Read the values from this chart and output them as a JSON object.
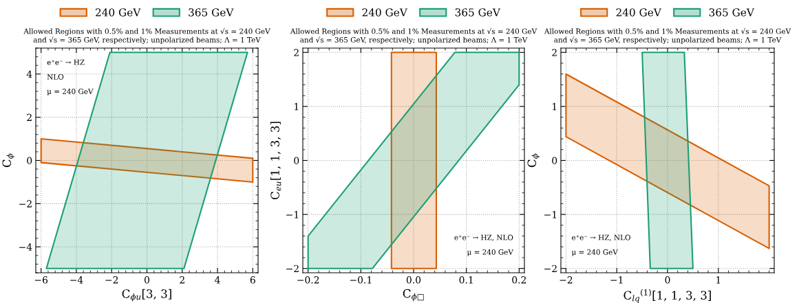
{
  "chart_data": [
    {
      "type": "area",
      "title": "Allowed Regions with 0.5% and 1% Measurements at √s = 240 GeV\nand √s = 365 GeV, respectively; unpolarized beams; Λ = 1 TeV",
      "xlabel": "C$_{ϕu}$[3, 3]",
      "ylabel": "C$_{ϕ}$",
      "xlim": [
        -6.3,
        6.3
      ],
      "ylim": [
        -5.2,
        5.2
      ],
      "xticks": [
        {
          "value": -6,
          "label": "−6"
        },
        {
          "value": -4,
          "label": "−4"
        },
        {
          "value": -2,
          "label": "−2"
        },
        0,
        2,
        4,
        6
      ],
      "yticks": [
        {
          "value": -4,
          "label": "−4"
        },
        {
          "value": -2,
          "label": "−2"
        },
        0,
        2,
        4
      ],
      "grid": true,
      "legend": "top",
      "annotations": [
        "e⁺e⁻ → HZ",
        "NLO",
        "μ = 240 GeV"
      ],
      "series": [
        {
          "name": "240 GeV",
          "color": "#d95f02",
          "x": [
            -6,
            6,
            6,
            -6
          ],
          "values": [
            1.0,
            0.1,
            -1.0,
            -0.1
          ]
        },
        {
          "name": "365 GeV",
          "color": "#1b9e77",
          "x": [
            -5.7,
            2.1,
            5.7,
            -2.1
          ],
          "values": [
            -5,
            -5,
            5,
            5
          ]
        }
      ]
    },
    {
      "type": "area",
      "title": "Allowed Regions with 0.5% and 1% Measurements at √s = 240 GeV\nand √s = 365 GeV, respectively; unpolarized beams; Λ = 1 TeV",
      "xlabel": "C$_{ϕ□}$",
      "ylabel": "C$_{eu}$[1, 1, 3, 3]",
      "xlim": [
        -0.21,
        0.21
      ],
      "ylim": [
        -2.08,
        2.08
      ],
      "xticks": [
        {
          "value": -0.2,
          "label": "−0.2"
        },
        {
          "value": -0.1,
          "label": "−0.1"
        },
        {
          "value": 0,
          "label": "0.0"
        },
        0.1,
        0.2
      ],
      "yticks": [
        {
          "value": -2,
          "label": "−2"
        },
        {
          "value": -1,
          "label": "−1"
        },
        0,
        1,
        2
      ],
      "grid": true,
      "legend": "top",
      "annotations": [
        "e⁺e⁻ → HZ, NLO",
        "μ = 240 GeV"
      ],
      "series": [
        {
          "name": "240 GeV",
          "color": "#d95f02",
          "x": [
            -0.042,
            0.043,
            0.043,
            -0.042
          ],
          "values": [
            -2,
            -2,
            2,
            2
          ]
        },
        {
          "name": "365 GeV",
          "color": "#1b9e77",
          "x": [
            -0.2,
            -0.078,
            0.2,
            0.2,
            0.078,
            -0.2
          ],
          "values": [
            -2,
            -2,
            1.4,
            2,
            2,
            -1.4
          ]
        }
      ]
    },
    {
      "type": "area",
      "title": "Allowed Regions with 0.5% and 1% Measurements at √s = 240 GeV\nand √s = 365 GeV, respectively; unpolarized beams; Λ = 1 TeV",
      "xlabel": "C$_{lq}$$^{(1)}$[1, 1, 3, 3]",
      "ylabel": "C$_{ϕ}$",
      "xlim": [
        -2.1,
        2.1
      ],
      "ylim": [
        -2.08,
        2.08
      ],
      "xticks": [
        {
          "value": -2,
          "label": "−2"
        },
        {
          "value": -1,
          "label": "−1"
        },
        0,
        1
      ],
      "yticks": [
        {
          "value": -2,
          "label": "−2"
        },
        {
          "value": -1,
          "label": "−1"
        },
        0,
        1,
        2
      ],
      "grid": true,
      "legend": "top",
      "annotations": [
        "e⁺e⁻ → HZ, NLO",
        "μ = 240 GeV"
      ],
      "series": [
        {
          "name": "240 GeV",
          "color": "#d95f02",
          "x": [
            -2,
            2,
            2,
            -2
          ],
          "values": [
            1.6,
            -0.47,
            -1.63,
            0.44
          ]
        },
        {
          "name": "365 GeV",
          "color": "#1b9e77",
          "x": [
            -0.5,
            0.33,
            0.5,
            -0.34
          ],
          "values": [
            2,
            2,
            -2,
            -2
          ]
        }
      ]
    }
  ]
}
